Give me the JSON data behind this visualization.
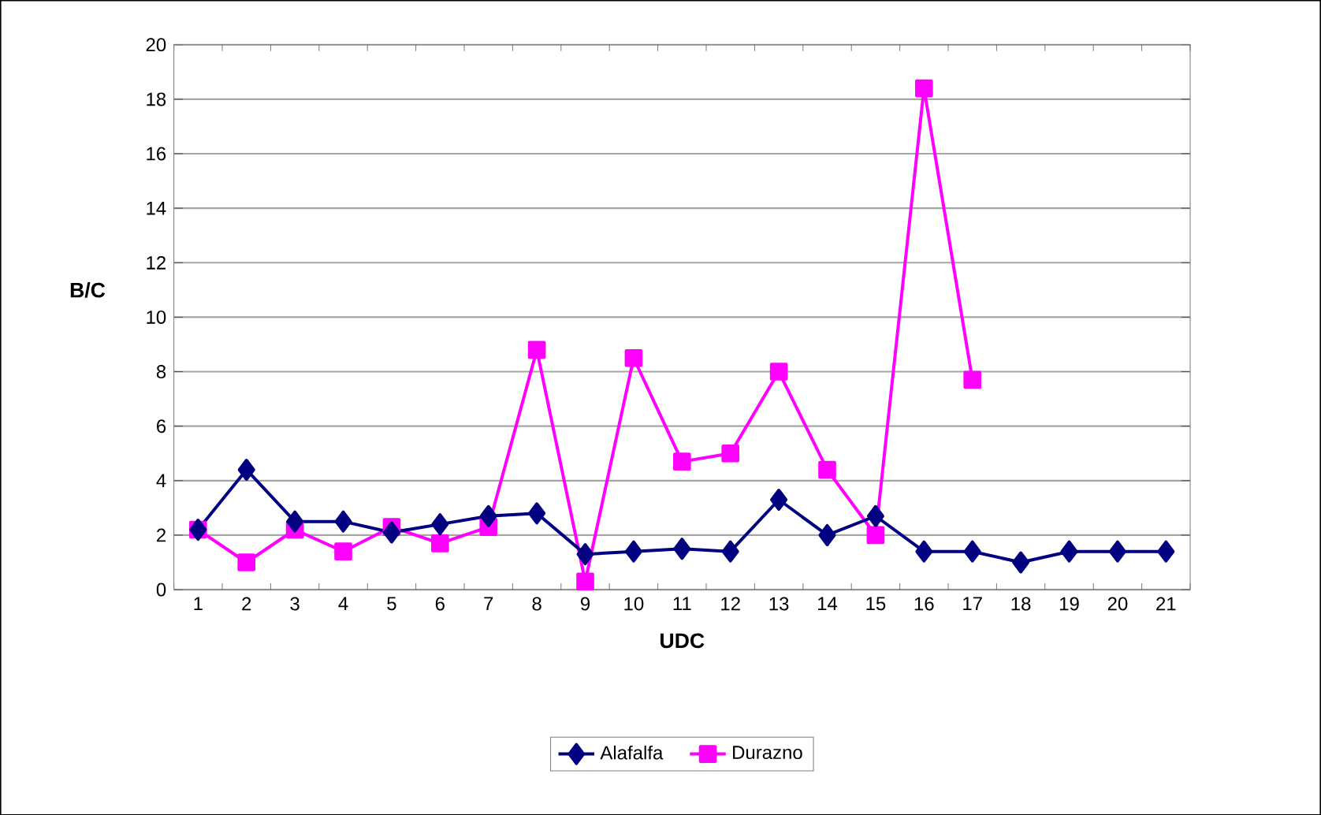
{
  "chart_data": {
    "type": "line",
    "xlabel": "UDC",
    "ylabel": "B/C",
    "categories": [
      "1",
      "2",
      "3",
      "4",
      "5",
      "6",
      "7",
      "8",
      "9",
      "10",
      "11",
      "12",
      "13",
      "14",
      "15",
      "16",
      "17",
      "18",
      "19",
      "20",
      "21"
    ],
    "series": [
      {
        "name": "Alafalfa",
        "color": "#000080",
        "marker": "diamond",
        "values": [
          2.2,
          4.4,
          2.5,
          2.5,
          2.1,
          2.4,
          2.7,
          2.8,
          1.3,
          1.4,
          1.5,
          1.4,
          3.3,
          2.0,
          2.7,
          1.4,
          1.4,
          1.0,
          1.4,
          1.4,
          1.4
        ]
      },
      {
        "name": "Durazno",
        "color": "#ff00ff",
        "marker": "square",
        "values": [
          2.2,
          1.0,
          2.2,
          1.4,
          2.3,
          1.7,
          2.3,
          8.8,
          0.3,
          8.5,
          4.7,
          5.0,
          8.0,
          4.4,
          2.0,
          18.4,
          7.7,
          null,
          null,
          null,
          null
        ]
      }
    ],
    "ylim": [
      0,
      20
    ],
    "yticks": [
      0,
      2,
      4,
      6,
      8,
      10,
      12,
      14,
      16,
      18,
      20
    ],
    "grid": "y",
    "legend": "bottom",
    "line_style": "solid"
  }
}
